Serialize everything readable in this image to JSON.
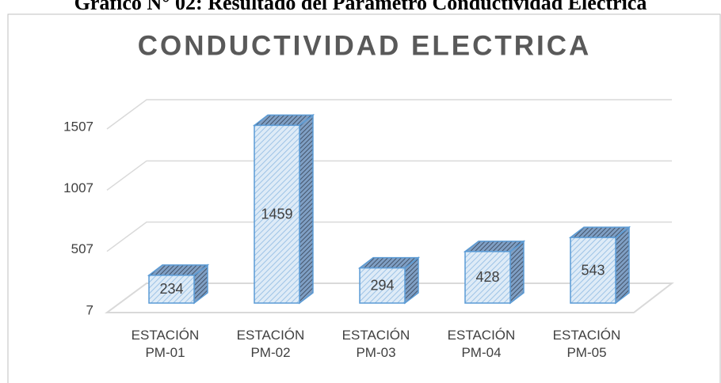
{
  "caption": "Gráfico N° 02: Resultado del Parámetro Conductividad Eléctrica",
  "chart_data": {
    "type": "bar3d",
    "title": "CONDUCTIVIDAD ELECTRICA",
    "categories": [
      "ESTACIÓN PM-01",
      "ESTACIÓN PM-02",
      "ESTACIÓN PM-03",
      "ESTACIÓN PM-04",
      "ESTACIÓN PM-05"
    ],
    "values": [
      234,
      1459,
      294,
      428,
      543
    ],
    "color": "#9dc3e6",
    "ylim": [
      7,
      1507
    ],
    "yticks": [
      7,
      507,
      1007,
      1507
    ],
    "grid": true
  }
}
